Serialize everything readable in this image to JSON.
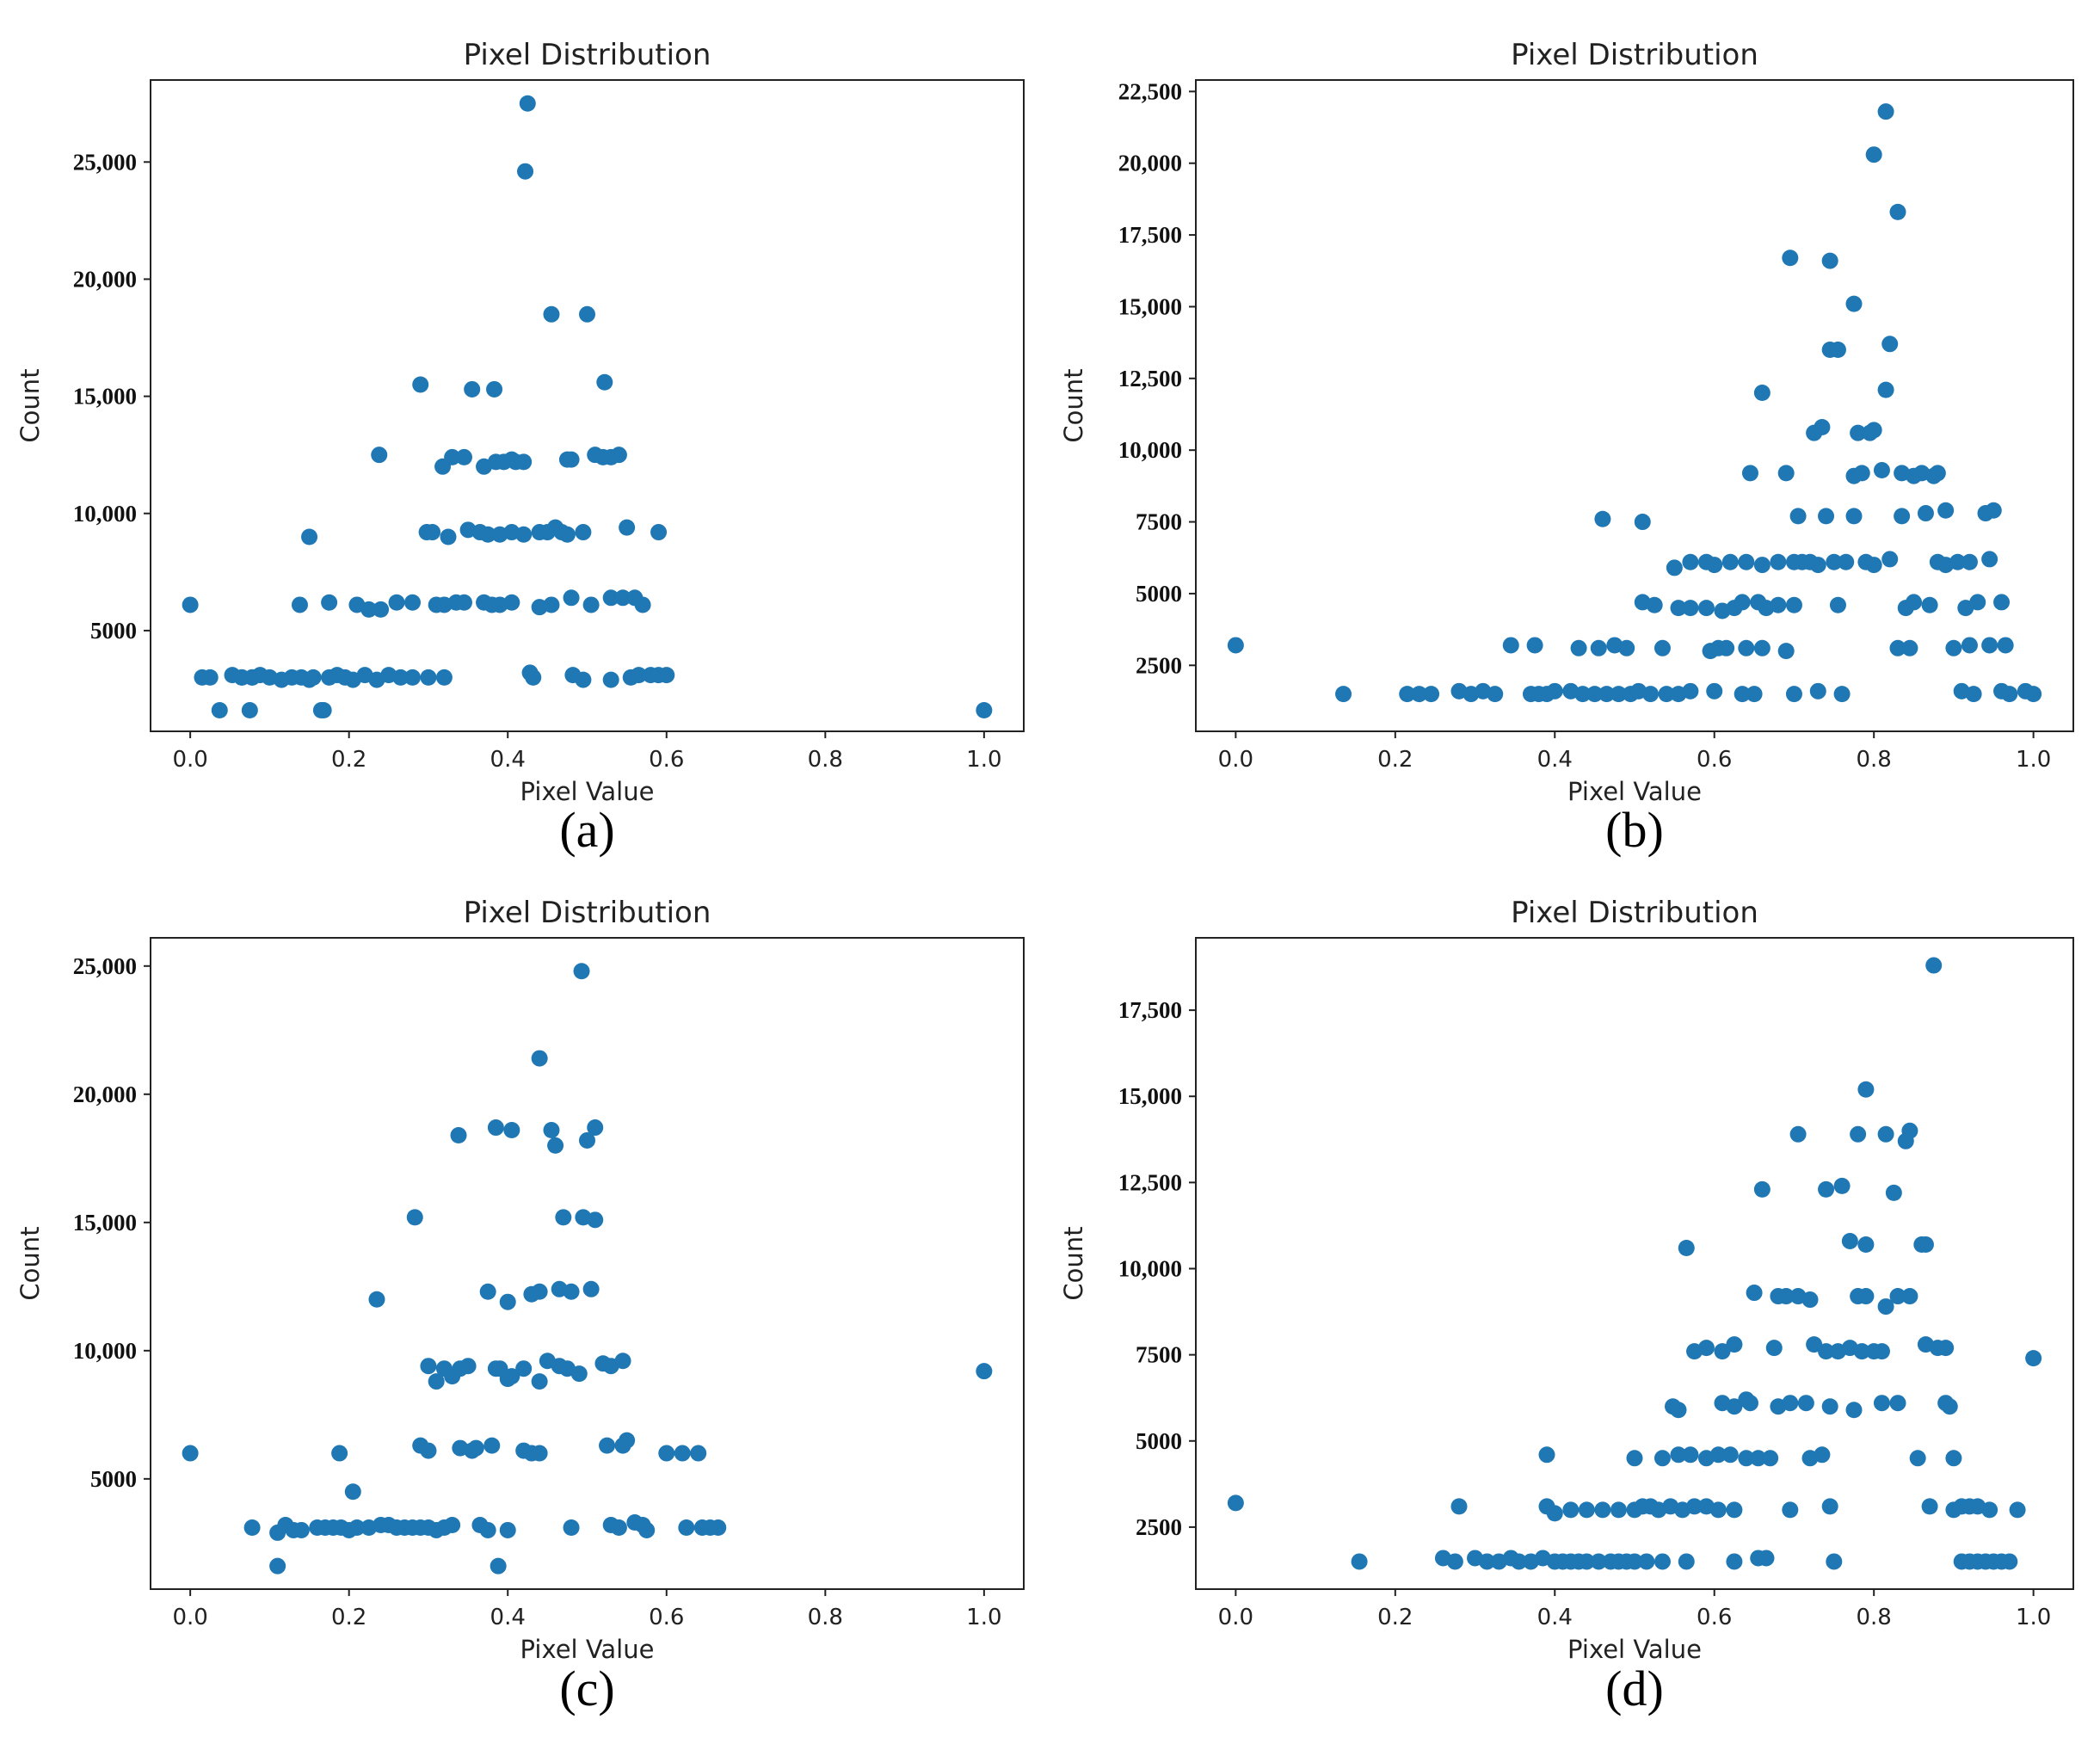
{
  "marker_color": "#1f77b4",
  "panels": [
    {
      "caption": "(a)",
      "chart_data": {
        "type": "scatter",
        "title": "Pixel Distribution",
        "xlabel": "Pixel Value",
        "ylabel": "Count",
        "xlim": [
          -0.05,
          1.05
        ],
        "ylim": [
          700,
          28500
        ],
        "xticks": [
          0.0,
          0.2,
          0.4,
          0.6,
          0.8,
          1.0
        ],
        "xtick_labels": [
          "0.0",
          "0.2",
          "0.4",
          "0.6",
          "0.8",
          "1.0"
        ],
        "yticks": [
          5000,
          10000,
          15000,
          20000,
          25000
        ],
        "ytick_labels": [
          "5000",
          "10,000",
          "15,000",
          "20,000",
          "25,000"
        ],
        "x": [
          0.0,
          0.015,
          0.025,
          0.037,
          0.053,
          0.065,
          0.075,
          0.078,
          0.088,
          0.1,
          0.115,
          0.128,
          0.14,
          0.15,
          0.155,
          0.165,
          0.175,
          0.185,
          0.195,
          0.205,
          0.22,
          0.235,
          0.25,
          0.265,
          0.28,
          0.3,
          0.32,
          0.065,
          0.078,
          0.138,
          0.168,
          0.175,
          0.21,
          0.225,
          0.24,
          0.26,
          0.28,
          0.31,
          0.32,
          0.335,
          0.345,
          0.37,
          0.38,
          0.39,
          0.405,
          0.44,
          0.455,
          0.48,
          0.505,
          0.53,
          0.545,
          0.56,
          0.57,
          0.298,
          0.305,
          0.325,
          0.35,
          0.365,
          0.375,
          0.39,
          0.405,
          0.42,
          0.44,
          0.45,
          0.46,
          0.468,
          0.475,
          0.495,
          0.55,
          0.59,
          0.15,
          0.318,
          0.33,
          0.345,
          0.37,
          0.385,
          0.395,
          0.405,
          0.41,
          0.42,
          0.475,
          0.48,
          0.51,
          0.52,
          0.53,
          0.54,
          0.238,
          0.29,
          0.355,
          0.383,
          0.455,
          0.5,
          0.522,
          0.422,
          0.425,
          0.428,
          0.432,
          0.482,
          0.495,
          0.53,
          0.555,
          0.565,
          0.58,
          0.59,
          0.6,
          1.0
        ],
        "y": [
          6100,
          3000,
          3000,
          1600,
          3100,
          3000,
          1600,
          3000,
          3100,
          3000,
          2900,
          3000,
          3000,
          2900,
          3000,
          1600,
          3000,
          3100,
          3000,
          2900,
          3100,
          2900,
          3100,
          3000,
          3000,
          3000,
          3000,
          3000,
          3000,
          6100,
          1600,
          6200,
          6100,
          5900,
          5900,
          6200,
          6200,
          6100,
          6100,
          6200,
          6200,
          6200,
          6100,
          6100,
          6200,
          6000,
          6100,
          6400,
          6100,
          6400,
          6400,
          6400,
          6100,
          9200,
          9200,
          9000,
          9300,
          9200,
          9100,
          9100,
          9200,
          9100,
          9200,
          9200,
          9400,
          9200,
          9100,
          9200,
          9400,
          9200,
          9000,
          12000,
          12400,
          12400,
          12000,
          12200,
          12200,
          12300,
          12200,
          12200,
          12300,
          12300,
          12500,
          12400,
          12400,
          12500,
          12500,
          15500,
          15300,
          15300,
          18500,
          18500,
          15600,
          24600,
          27500,
          3200,
          3000,
          3100,
          2900,
          2900,
          3000,
          3100,
          3100,
          3100,
          3100,
          1600
        ]
      }
    },
    {
      "caption": "(b)",
      "chart_data": {
        "type": "scatter",
        "title": "Pixel Distribution",
        "xlabel": "Pixel Value",
        "ylabel": "Count",
        "xlim": [
          -0.05,
          1.05
        ],
        "ylim": [
          200,
          22900
        ],
        "xticks": [
          0.0,
          0.2,
          0.4,
          0.6,
          0.8,
          1.0
        ],
        "xtick_labels": [
          "0.0",
          "0.2",
          "0.4",
          "0.6",
          "0.8",
          "1.0"
        ],
        "yticks": [
          2500,
          5000,
          7500,
          10000,
          12500,
          15000,
          17500,
          20000,
          22500
        ],
        "ytick_labels": [
          "2500",
          "5000",
          "7500",
          "10,000",
          "12,500",
          "15,000",
          "17,500",
          "20,000",
          "22,500"
        ],
        "x": [
          0.0,
          0.135,
          0.215,
          0.23,
          0.245,
          0.28,
          0.295,
          0.31,
          0.325,
          0.37,
          0.38,
          0.39,
          0.4,
          0.42,
          0.435,
          0.45,
          0.465,
          0.48,
          0.495,
          0.505,
          0.52,
          0.54,
          0.555,
          0.57,
          0.6,
          0.635,
          0.65,
          0.7,
          0.73,
          0.76,
          0.91,
          0.925,
          0.96,
          0.97,
          0.99,
          1.0,
          0.345,
          0.375,
          0.43,
          0.455,
          0.475,
          0.49,
          0.535,
          0.595,
          0.605,
          0.615,
          0.64,
          0.66,
          0.69,
          0.83,
          0.845,
          0.9,
          0.92,
          0.945,
          0.965,
          0.51,
          0.525,
          0.555,
          0.57,
          0.59,
          0.61,
          0.625,
          0.635,
          0.655,
          0.665,
          0.68,
          0.7,
          0.755,
          0.84,
          0.85,
          0.87,
          0.915,
          0.93,
          0.96,
          0.55,
          0.57,
          0.59,
          0.6,
          0.62,
          0.64,
          0.66,
          0.68,
          0.7,
          0.71,
          0.72,
          0.73,
          0.75,
          0.765,
          0.79,
          0.8,
          0.82,
          0.88,
          0.89,
          0.905,
          0.92,
          0.945,
          0.46,
          0.51,
          0.705,
          0.74,
          0.775,
          0.835,
          0.865,
          0.89,
          0.94,
          0.95,
          0.645,
          0.69,
          0.775,
          0.785,
          0.81,
          0.835,
          0.85,
          0.86,
          0.875,
          0.88,
          0.725,
          0.735,
          0.78,
          0.795,
          0.8,
          0.66,
          0.815,
          0.745,
          0.755,
          0.775,
          0.82,
          0.695,
          0.745,
          0.83,
          0.8,
          0.815
        ],
        "y": [
          3200,
          1500,
          1500,
          1500,
          1500,
          1600,
          1500,
          1600,
          1500,
          1500,
          1500,
          1500,
          1600,
          1600,
          1500,
          1500,
          1500,
          1500,
          1500,
          1600,
          1500,
          1500,
          1500,
          1600,
          1600,
          1500,
          1500,
          1500,
          1600,
          1500,
          1600,
          1500,
          1600,
          1500,
          1600,
          1500,
          3200,
          3200,
          3100,
          3100,
          3200,
          3100,
          3100,
          3000,
          3100,
          3100,
          3100,
          3100,
          3000,
          3100,
          3100,
          3100,
          3200,
          3200,
          3200,
          4700,
          4600,
          4500,
          4500,
          4500,
          4400,
          4500,
          4700,
          4700,
          4500,
          4600,
          4600,
          4600,
          4500,
          4700,
          4600,
          4500,
          4700,
          4700,
          5900,
          6100,
          6100,
          6000,
          6100,
          6100,
          6000,
          6100,
          6100,
          6100,
          6100,
          6000,
          6100,
          6100,
          6100,
          6000,
          6200,
          6100,
          6000,
          6100,
          6100,
          6200,
          7600,
          7500,
          7700,
          7700,
          7700,
          7700,
          7800,
          7900,
          7800,
          7900,
          9200,
          9200,
          9100,
          9200,
          9300,
          9200,
          9100,
          9200,
          9100,
          9200,
          10600,
          10800,
          10600,
          10600,
          10700,
          12000,
          12100,
          13500,
          13500,
          15100,
          13700,
          16700,
          16600,
          18300,
          20300,
          21800
        ]
      }
    },
    {
      "caption": "(c)",
      "chart_data": {
        "type": "scatter",
        "title": "Pixel Distribution",
        "xlabel": "Pixel Value",
        "ylabel": "Count",
        "xlim": [
          -0.05,
          1.05
        ],
        "ylim": [
          700,
          26100
        ],
        "xticks": [
          0.0,
          0.2,
          0.4,
          0.6,
          0.8,
          1.0
        ],
        "xtick_labels": [
          "0.0",
          "0.2",
          "0.4",
          "0.6",
          "0.8",
          "1.0"
        ],
        "yticks": [
          5000,
          10000,
          15000,
          20000,
          25000
        ],
        "ytick_labels": [
          "5000",
          "10,000",
          "15,000",
          "20,000",
          "25,000"
        ],
        "x": [
          0.0,
          0.078,
          0.11,
          0.12,
          0.13,
          0.14,
          0.16,
          0.17,
          0.18,
          0.19,
          0.2,
          0.21,
          0.225,
          0.24,
          0.25,
          0.26,
          0.27,
          0.28,
          0.29,
          0.3,
          0.31,
          0.32,
          0.33,
          0.365,
          0.375,
          0.4,
          0.48,
          0.53,
          0.54,
          0.56,
          0.57,
          0.575,
          0.625,
          0.645,
          0.655,
          0.665,
          0.11,
          0.388,
          0.205,
          0.188,
          0.29,
          0.3,
          0.34,
          0.355,
          0.36,
          0.38,
          0.42,
          0.43,
          0.44,
          0.525,
          0.545,
          0.55,
          0.6,
          0.62,
          0.64,
          0.3,
          0.31,
          0.32,
          0.33,
          0.34,
          0.35,
          0.385,
          0.39,
          0.4,
          0.405,
          0.42,
          0.44,
          0.45,
          0.465,
          0.475,
          0.49,
          0.52,
          0.53,
          0.545,
          1.0,
          0.235,
          0.375,
          0.4,
          0.43,
          0.44,
          0.465,
          0.48,
          0.505,
          0.283,
          0.47,
          0.495,
          0.51,
          0.338,
          0.385,
          0.405,
          0.455,
          0.46,
          0.5,
          0.51,
          0.44,
          0.493
        ],
        "y": [
          6000,
          3100,
          2900,
          3200,
          3000,
          3000,
          3100,
          3100,
          3100,
          3100,
          3000,
          3100,
          3100,
          3200,
          3200,
          3100,
          3100,
          3100,
          3100,
          3100,
          3000,
          3100,
          3200,
          3200,
          3000,
          3000,
          3100,
          3200,
          3100,
          3300,
          3200,
          3000,
          3100,
          3100,
          3100,
          3100,
          1600,
          1600,
          4500,
          6000,
          6300,
          6100,
          6200,
          6100,
          6200,
          6300,
          6100,
          6000,
          6000,
          6300,
          6300,
          6500,
          6000,
          6000,
          6000,
          9400,
          8800,
          9300,
          9000,
          9300,
          9400,
          9300,
          9300,
          8900,
          9000,
          9300,
          8800,
          9600,
          9400,
          9300,
          9100,
          9500,
          9400,
          9600,
          9200,
          12000,
          12300,
          11900,
          12200,
          12300,
          12400,
          12300,
          12400,
          15200,
          15200,
          15200,
          15100,
          18400,
          18700,
          18600,
          18600,
          18000,
          18200,
          18700,
          21400,
          24800
        ]
      }
    },
    {
      "caption": "(d)",
      "chart_data": {
        "type": "scatter",
        "title": "Pixel Distribution",
        "xlabel": "Pixel Value",
        "ylabel": "Count",
        "xlim": [
          -0.05,
          1.05
        ],
        "ylim": [
          700,
          19600
        ],
        "xticks": [
          0.0,
          0.2,
          0.4,
          0.6,
          0.8,
          1.0
        ],
        "xtick_labels": [
          "0.0",
          "0.2",
          "0.4",
          "0.6",
          "0.8",
          "1.0"
        ],
        "yticks": [
          2500,
          5000,
          7500,
          10000,
          12500,
          15000,
          17500
        ],
        "ytick_labels": [
          "2500",
          "5000",
          "7500",
          "10,000",
          "12,500",
          "15,000",
          "17,500"
        ],
        "x": [
          0.0,
          0.155,
          0.26,
          0.275,
          0.3,
          0.315,
          0.33,
          0.345,
          0.355,
          0.37,
          0.385,
          0.4,
          0.41,
          0.42,
          0.43,
          0.44,
          0.455,
          0.47,
          0.48,
          0.49,
          0.5,
          0.515,
          0.535,
          0.565,
          0.625,
          0.655,
          0.665,
          0.75,
          0.91,
          0.92,
          0.93,
          0.94,
          0.95,
          0.96,
          0.97,
          0.28,
          0.39,
          0.4,
          0.42,
          0.44,
          0.46,
          0.48,
          0.5,
          0.51,
          0.52,
          0.53,
          0.545,
          0.56,
          0.575,
          0.59,
          0.605,
          0.625,
          0.695,
          0.745,
          0.87,
          0.9,
          0.91,
          0.92,
          0.93,
          0.945,
          0.98,
          0.39,
          0.5,
          0.535,
          0.555,
          0.57,
          0.59,
          0.605,
          0.62,
          0.64,
          0.655,
          0.67,
          0.72,
          0.735,
          0.855,
          0.9,
          0.548,
          0.555,
          0.61,
          0.625,
          0.64,
          0.645,
          0.68,
          0.695,
          0.715,
          0.745,
          0.775,
          0.81,
          0.83,
          0.89,
          0.895,
          0.575,
          0.59,
          0.61,
          0.625,
          0.675,
          0.725,
          0.74,
          0.755,
          0.77,
          0.785,
          0.8,
          0.81,
          0.865,
          0.88,
          0.89,
          1.0,
          0.65,
          0.68,
          0.69,
          0.705,
          0.72,
          0.78,
          0.79,
          0.815,
          0.83,
          0.845,
          0.565,
          0.77,
          0.79,
          0.86,
          0.865,
          0.66,
          0.74,
          0.76,
          0.825,
          0.705,
          0.78,
          0.815,
          0.84,
          0.845,
          0.79,
          0.875
        ],
        "y": [
          3200,
          1500,
          1600,
          1500,
          1600,
          1500,
          1500,
          1600,
          1500,
          1500,
          1600,
          1500,
          1500,
          1500,
          1500,
          1500,
          1500,
          1500,
          1500,
          1500,
          1500,
          1500,
          1500,
          1500,
          1500,
          1600,
          1600,
          1500,
          1500,
          1500,
          1500,
          1500,
          1500,
          1500,
          1500,
          3100,
          3100,
          2900,
          3000,
          3000,
          3000,
          3000,
          3000,
          3100,
          3100,
          3000,
          3100,
          3000,
          3100,
          3100,
          3000,
          3000,
          3000,
          3100,
          3100,
          3000,
          3100,
          3100,
          3100,
          3000,
          3000,
          4600,
          4500,
          4500,
          4600,
          4600,
          4500,
          4600,
          4600,
          4500,
          4500,
          4500,
          4500,
          4600,
          4500,
          4500,
          6000,
          5900,
          6100,
          6000,
          6200,
          6100,
          6000,
          6100,
          6100,
          6000,
          5900,
          6100,
          6100,
          6100,
          6000,
          7600,
          7700,
          7600,
          7800,
          7700,
          7800,
          7600,
          7600,
          7700,
          7600,
          7600,
          7600,
          7800,
          7700,
          7700,
          7400,
          9300,
          9200,
          9200,
          9200,
          9100,
          9200,
          9200,
          8900,
          9200,
          9200,
          10600,
          10800,
          10700,
          10700,
          10700,
          12300,
          12300,
          12400,
          12200,
          13900,
          13900,
          13900,
          13700,
          14000,
          15200,
          18800
        ]
      }
    }
  ]
}
